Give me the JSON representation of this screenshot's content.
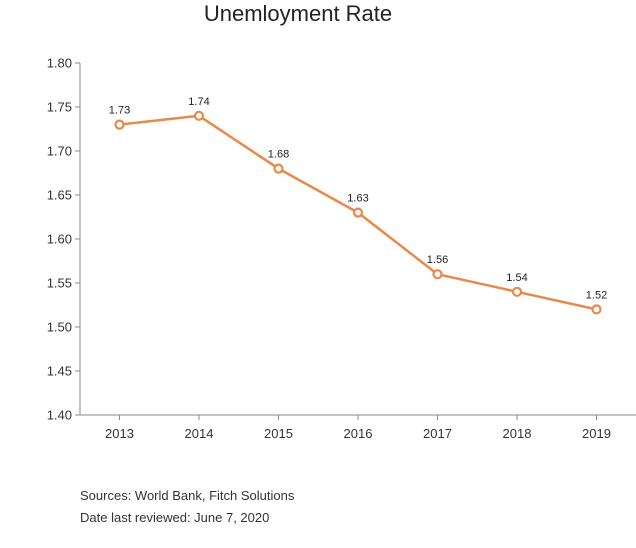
{
  "chart_data": {
    "type": "line",
    "title": "Unemloyment Rate",
    "xlabel": "",
    "ylabel": "",
    "categories": [
      "2013",
      "2014",
      "2015",
      "2016",
      "2017",
      "2018",
      "2019"
    ],
    "series": [
      {
        "values": [
          1.73,
          1.74,
          1.68,
          1.63,
          1.56,
          1.54,
          1.52
        ],
        "labels": [
          "1.73",
          "1.74",
          "1.68",
          "1.63",
          "1.56",
          "1.54",
          "1.52"
        ],
        "color": "#e8894a"
      }
    ],
    "ylim": [
      1.4,
      1.8
    ],
    "yticks": [
      "1.40",
      "1.45",
      "1.50",
      "1.55",
      "1.60",
      "1.65",
      "1.70",
      "1.75",
      "1.80"
    ],
    "grid": false,
    "legend": "none"
  },
  "footer": {
    "source": "Sources: World Bank, Fitch Solutions",
    "reviewed": "Date last reviewed: June 7, 2020"
  }
}
